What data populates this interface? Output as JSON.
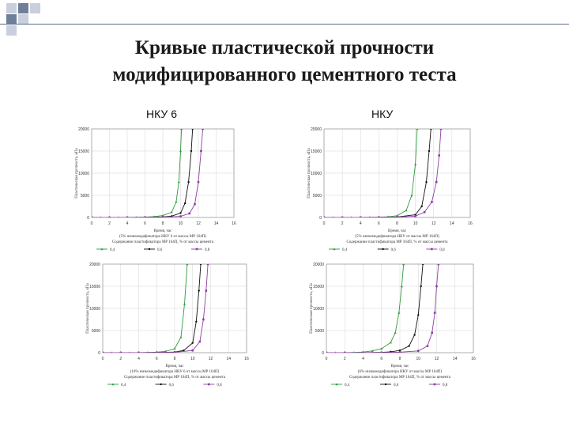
{
  "slide": {
    "title_line1": "Кривые пластической прочности",
    "title_line2": "модифицированного цементного теста",
    "col_left": "НКУ 6",
    "col_right": "НКУ"
  },
  "theme": {
    "accent": "#5b6b86",
    "deco_light": "#c9cfdc",
    "deco_dark": "#6f7f99"
  },
  "chart_data": [
    {
      "type": "line",
      "panel": "top-left",
      "xlabel": "Время, час",
      "ylabel": "Пластическая прочность, кПа",
      "xlim": [
        0,
        16
      ],
      "ylim": [
        0,
        20000
      ],
      "xticks": [
        0,
        2,
        4,
        6,
        8,
        10,
        12,
        14,
        16
      ],
      "yticks": [
        0,
        5000,
        10000,
        15000,
        20000
      ],
      "note1": "(5% низкомодификатора НКУ 6 от массы МР 164П)",
      "note2": "Содержание пластификатора МР 164П, % от массы цемента",
      "series": [
        {
          "name": "0,4",
          "color": "#2f9a3c",
          "marker": "^",
          "x": [
            0,
            1,
            2,
            3,
            4,
            5,
            6,
            7,
            8,
            9,
            9.5,
            9.8,
            10.0,
            10.1
          ],
          "y": [
            0,
            0,
            0,
            0,
            0,
            30,
            80,
            180,
            420,
            1200,
            3500,
            8000,
            15000,
            20000
          ]
        },
        {
          "name": "0,6",
          "color": "#111111",
          "marker": "o",
          "x": [
            0,
            2,
            4,
            6,
            8,
            9,
            10,
            10.5,
            10.9,
            11.2,
            11.35
          ],
          "y": [
            0,
            0,
            10,
            40,
            120,
            300,
            1000,
            3200,
            8000,
            15000,
            20000
          ]
        },
        {
          "name": "0,8",
          "color": "#8e3fa3",
          "marker": "s",
          "x": [
            0,
            2,
            4,
            6,
            8,
            10,
            11,
            11.6,
            12.0,
            12.3,
            12.5
          ],
          "y": [
            0,
            0,
            10,
            30,
            80,
            250,
            900,
            3000,
            8000,
            15000,
            20000
          ]
        }
      ]
    },
    {
      "type": "line",
      "panel": "top-right",
      "xlabel": "Время, час",
      "ylabel": "Пластическая прочность, кПа",
      "xlim": [
        0,
        16
      ],
      "ylim": [
        0,
        20000
      ],
      "xticks": [
        0,
        2,
        4,
        6,
        8,
        10,
        12,
        14,
        16
      ],
      "yticks": [
        0,
        5000,
        10000,
        15000,
        20000
      ],
      "note1": "(5% низкомодификатора НКУ от массы МР 164П)",
      "note2": "Содержание пластификатора МР 164П, % от массы цемента",
      "series": [
        {
          "name": "0,4",
          "color": "#2f9a3c",
          "marker": "^",
          "x": [
            0,
            1,
            2,
            3,
            4,
            5,
            6,
            7,
            8,
            9,
            9.6,
            10.0,
            10.2
          ],
          "y": [
            0,
            0,
            0,
            0,
            0,
            20,
            60,
            150,
            400,
            1600,
            5000,
            12000,
            20000
          ]
        },
        {
          "name": "0,6",
          "color": "#111111",
          "marker": "o",
          "x": [
            0,
            2,
            4,
            6,
            8,
            10,
            10.7,
            11.2,
            11.5,
            11.7
          ],
          "y": [
            0,
            0,
            10,
            30,
            100,
            600,
            2500,
            8000,
            15000,
            20000
          ]
        },
        {
          "name": "0,8",
          "color": "#8e3fa3",
          "marker": "s",
          "x": [
            0,
            2,
            4,
            6,
            8,
            10,
            11,
            11.8,
            12.3,
            12.6,
            12.8
          ],
          "y": [
            0,
            0,
            10,
            30,
            80,
            300,
            1200,
            3500,
            8000,
            14000,
            20000
          ]
        }
      ]
    },
    {
      "type": "line",
      "panel": "bottom-left",
      "xlabel": "Время, час",
      "ylabel": "Пластическая прочность, кПа",
      "xlim": [
        0,
        16
      ],
      "ylim": [
        0,
        20000
      ],
      "xticks": [
        0,
        2,
        4,
        6,
        8,
        10,
        12,
        14,
        16
      ],
      "yticks": [
        0,
        5000,
        10000,
        15000,
        20000
      ],
      "note1": "(10% низкомодификатора НКУ 6 от массы МР 164П)",
      "note2": "Содержание пластификатора МР 164П, % от массы цемента",
      "series": [
        {
          "name": "0,4",
          "color": "#2f9a3c",
          "marker": "^",
          "x": [
            0,
            1,
            2,
            3,
            4,
            5,
            6,
            7,
            8,
            8.7,
            9.1,
            9.4
          ],
          "y": [
            0,
            0,
            0,
            0,
            20,
            50,
            120,
            300,
            900,
            3500,
            11000,
            20000
          ]
        },
        {
          "name": "0,6",
          "color": "#111111",
          "marker": "o",
          "x": [
            0,
            2,
            4,
            6,
            8,
            9,
            10,
            10.4,
            10.7,
            10.9
          ],
          "y": [
            0,
            0,
            10,
            40,
            150,
            500,
            2200,
            7000,
            14000,
            20000
          ]
        },
        {
          "name": "0,8",
          "color": "#8e3fa3",
          "marker": "s",
          "x": [
            0,
            2,
            4,
            6,
            8,
            10,
            10.8,
            11.2,
            11.5,
            11.7
          ],
          "y": [
            0,
            0,
            10,
            30,
            90,
            500,
            2500,
            7500,
            14000,
            20000
          ]
        }
      ]
    },
    {
      "type": "line",
      "panel": "bottom-right",
      "xlabel": "Время, час",
      "ylabel": "Пластическая прочность, кПа",
      "xlim": [
        0,
        16
      ],
      "ylim": [
        0,
        20000
      ],
      "xticks": [
        0,
        2,
        4,
        6,
        8,
        10,
        12,
        14,
        16
      ],
      "yticks": [
        0,
        5000,
        10000,
        15000,
        20000
      ],
      "note1": "(6% низкомодификатора НКУ от массы МР 164П)",
      "note2": "Содержание пластификатора МР 164П, % от массы цемента",
      "series": [
        {
          "name": "0,4",
          "color": "#2f9a3c",
          "marker": "^",
          "x": [
            0,
            1,
            2,
            3,
            4,
            5,
            6,
            7,
            7.5,
            7.9,
            8.2,
            8.4
          ],
          "y": [
            0,
            0,
            0,
            50,
            150,
            400,
            900,
            2300,
            4500,
            9000,
            15000,
            20000
          ]
        },
        {
          "name": "0,6",
          "color": "#111111",
          "marker": "o",
          "x": [
            0,
            2,
            4,
            6,
            7,
            8,
            9,
            9.6,
            10.0,
            10.3,
            10.5
          ],
          "y": [
            0,
            0,
            20,
            80,
            200,
            500,
            1500,
            4000,
            8500,
            15000,
            20000
          ]
        },
        {
          "name": "0,8",
          "color": "#8e3fa3",
          "marker": "s",
          "x": [
            0,
            2,
            4,
            6,
            8,
            10,
            11,
            11.5,
            11.8,
            12.0,
            12.2
          ],
          "y": [
            0,
            0,
            10,
            40,
            120,
            400,
            1500,
            4500,
            9000,
            15000,
            20000
          ]
        }
      ]
    }
  ]
}
